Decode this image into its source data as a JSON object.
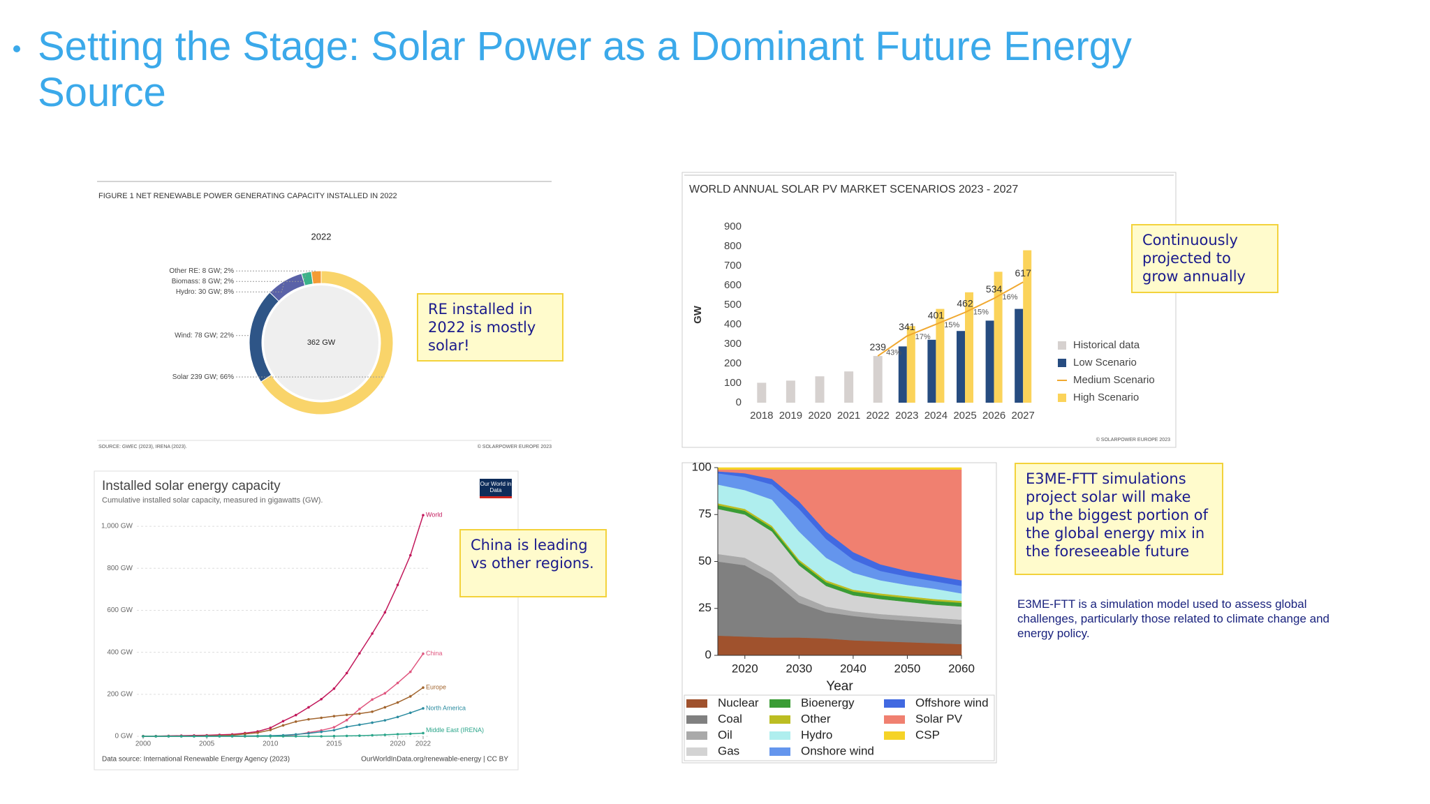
{
  "title": "Setting the Stage: Solar Power as a Dominant Future Energy Source",
  "callouts": [
    "RE installed in 2022 is mostly solar!",
    "Continuously projected to grow annually",
    "China is leading vs other regions.",
    "E3ME-FTT simulations project solar will make up the biggest portion of the global energy mix in the foreseeable future"
  ],
  "note": "E3ME-FTT is a simulation model used to assess global challenges, particularly those related to climate change and energy policy.",
  "chart_data": [
    {
      "type": "pie",
      "title": "FIGURE 1 NET RENEWABLE POWER GENERATING CAPACITY INSTALLED IN 2022",
      "subtitle": "2022",
      "center_label": "362 GW",
      "categories": [
        "Solar 239 GW; 66%",
        "Wind: 78 GW; 22%",
        "Hydro: 30 GW; 8%",
        "Biomass: 8 GW; 2%",
        "Other RE: 8 GW; 2%"
      ],
      "values": [
        239,
        78,
        30,
        8,
        8
      ],
      "colors": [
        "#f9d46a",
        "#2e5587",
        "#5a62a8",
        "#3bb38a",
        "#f39c35"
      ],
      "source": "SOURCE: GWEC (2023), IRENA (2023).",
      "credit": "© SOLARPOWER EUROPE 2023"
    },
    {
      "type": "bar",
      "title": "WORLD ANNUAL SOLAR PV MARKET SCENARIOS 2023 - 2027",
      "y_label": "GW",
      "categories": [
        "2018",
        "2019",
        "2020",
        "2021",
        "2022",
        "2023",
        "2024",
        "2025",
        "2026",
        "2027"
      ],
      "ylim": [
        0,
        900
      ],
      "yticks": [
        0,
        100,
        200,
        300,
        400,
        500,
        600,
        700,
        800,
        900
      ],
      "series": [
        {
          "name": "Historical data",
          "color": "#d6d1cf",
          "values": [
            102,
            113,
            135,
            160,
            239,
            null,
            null,
            null,
            null,
            null
          ]
        },
        {
          "name": "Low Scenario",
          "color": "#264c80",
          "values": [
            null,
            null,
            null,
            null,
            null,
            288,
            322,
            367,
            420,
            480
          ]
        },
        {
          "name": "Medium Scenario",
          "color": "#f0a830",
          "kind": "line",
          "values": [
            null,
            null,
            null,
            null,
            239,
            341,
            401,
            462,
            534,
            617
          ],
          "growth_labels": [
            null,
            null,
            null,
            null,
            null,
            "43%",
            "17%",
            "15%",
            "15%",
            "16%"
          ]
        },
        {
          "name": "High Scenario",
          "color": "#fbd35a",
          "values": [
            null,
            null,
            null,
            null,
            null,
            392,
            480,
            565,
            670,
            780
          ]
        }
      ],
      "legend": "right",
      "credit": "© SOLARPOWER EUROPE 2023"
    },
    {
      "type": "line",
      "title": "Installed solar energy capacity",
      "subtitle": "Cumulative installed solar capacity, measured in gigawatts (GW).",
      "logo": "Our World in Data",
      "x": [
        2000,
        2001,
        2002,
        2003,
        2004,
        2005,
        2006,
        2007,
        2008,
        2009,
        2010,
        2011,
        2012,
        2013,
        2014,
        2015,
        2016,
        2017,
        2018,
        2019,
        2020,
        2021,
        2022
      ],
      "xlim": [
        2000,
        2022
      ],
      "xticks": [
        2000,
        2005,
        2010,
        2015,
        2020,
        2022
      ],
      "ylim": [
        0,
        1100
      ],
      "yticks": [
        {
          "value": 0,
          "label": "0 GW"
        },
        {
          "value": 200,
          "label": "200 GW"
        },
        {
          "value": 400,
          "label": "400 GW"
        },
        {
          "value": 600,
          "label": "600 GW"
        },
        {
          "value": 800,
          "label": "800 GW"
        },
        {
          "value": 1000,
          "label": "1,000 GW"
        }
      ],
      "grid": true,
      "series": [
        {
          "name": "World",
          "color": "#c2185b",
          "values": [
            1,
            1,
            2,
            3,
            4,
            5,
            7,
            9,
            15,
            23,
            40,
            72,
            101,
            138,
            177,
            227,
            301,
            395,
            489,
            590,
            721,
            862,
            1053
          ]
        },
        {
          "name": "China",
          "color": "#e0567f",
          "values": [
            0,
            0,
            0,
            0,
            0,
            0,
            0,
            0,
            0,
            0.4,
            1,
            3,
            7,
            18,
            28,
            43,
            77,
            130,
            175,
            205,
            254,
            307,
            393
          ]
        },
        {
          "name": "Europe",
          "color": "#a2652e",
          "values": [
            0.2,
            0.3,
            0.5,
            0.7,
            1,
            2,
            3,
            5,
            11,
            17,
            30,
            52,
            70,
            81,
            88,
            96,
            102,
            108,
            117,
            138,
            161,
            190,
            232
          ]
        },
        {
          "name": "North America",
          "color": "#2b8ca0",
          "values": [
            0,
            0,
            0,
            0,
            0,
            0.5,
            0.7,
            1,
            1.5,
            2,
            3,
            5,
            9,
            14,
            21,
            29,
            45,
            55,
            65,
            76,
            92,
            112,
            133
          ]
        },
        {
          "name": "Middle East (IRENA)",
          "color": "#2aa58a",
          "values": [
            0,
            0,
            0,
            0,
            0,
            0,
            0,
            0,
            0,
            0,
            0,
            0,
            0,
            0,
            0,
            1,
            2,
            3,
            5,
            7,
            10,
            12,
            15
          ]
        }
      ],
      "source": "Data source: International Renewable Energy Agency (2023)",
      "credit": "OurWorldInData.org/renewable-energy | CC BY"
    },
    {
      "type": "area",
      "stacked": true,
      "x_label": "Year",
      "x": [
        2015,
        2020,
        2025,
        2030,
        2035,
        2040,
        2045,
        2050,
        2055,
        2060
      ],
      "xlim": [
        2015,
        2060
      ],
      "xticks": [
        2020,
        2030,
        2040,
        2050,
        2060
      ],
      "ylim": [
        0,
        100
      ],
      "yticks": [
        0,
        25,
        50,
        75,
        100
      ],
      "series": [
        {
          "name": "Nuclear",
          "color": "#a0522d",
          "values": [
            10.5,
            10,
            9.5,
            9.5,
            9,
            8,
            7.5,
            7,
            6.5,
            6
          ]
        },
        {
          "name": "Coal",
          "color": "#808080",
          "values": [
            39.5,
            38,
            30.5,
            18.5,
            14,
            13,
            12,
            11.5,
            11,
            10.5
          ]
        },
        {
          "name": "Oil",
          "color": "#a9a9a9",
          "values": [
            4,
            4,
            4,
            4,
            3,
            2.5,
            2.5,
            2.5,
            2.5,
            2.5
          ]
        },
        {
          "name": "Gas",
          "color": "#d3d3d3",
          "values": [
            24,
            23,
            22,
            16,
            11,
            8.5,
            8,
            7.5,
            7,
            7
          ]
        },
        {
          "name": "Bioenergy",
          "color": "#3a9c35",
          "values": [
            2,
            2,
            2,
            2,
            2,
            2,
            2,
            2,
            2,
            2
          ]
        },
        {
          "name": "Other",
          "color": "#bcbd22",
          "values": [
            1,
            1,
            1,
            1,
            1,
            1,
            1,
            1,
            1,
            1
          ]
        },
        {
          "name": "Hydro",
          "color": "#afeeee",
          "values": [
            10,
            10,
            14,
            15,
            12,
            9,
            7,
            6,
            5.5,
            4
          ]
        },
        {
          "name": "Onshore wind",
          "color": "#6495ed",
          "values": [
            6,
            7,
            8,
            12,
            10,
            7,
            5,
            4.5,
            4,
            4
          ]
        },
        {
          "name": "Offshore wind",
          "color": "#4169e1",
          "values": [
            1,
            2,
            3,
            4,
            4,
            4,
            3.5,
            3,
            3,
            3
          ]
        },
        {
          "name": "Solar PV",
          "color": "#f08070",
          "values": [
            1,
            2,
            5,
            17,
            33,
            44,
            50.5,
            54,
            56.5,
            59
          ]
        },
        {
          "name": "CSP",
          "color": "#f5d327",
          "values": [
            1,
            1,
            1,
            1,
            1,
            1,
            1,
            1,
            1,
            1
          ]
        }
      ],
      "legend": "bottom"
    }
  ]
}
